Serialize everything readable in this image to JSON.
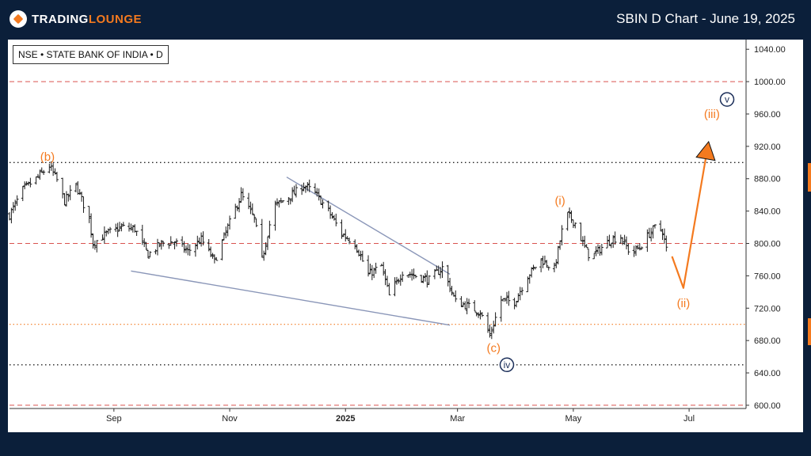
{
  "header": {
    "brand_left": "TRADING",
    "brand_right": "LOUNGE",
    "title": "SBIN D Chart - June 19, 2025"
  },
  "symbol_label": "NSE • STATE BANK OF INDIA • D",
  "colors": {
    "background": "#0b1f3a",
    "accent": "#f47a1f",
    "wedge": "#8a96b8",
    "wave_navy": "#1c2f5a",
    "red_dash": "#d9534f"
  },
  "chart_data": {
    "type": "line",
    "ylim": [
      596,
      1050
    ],
    "y_ticks": [
      600,
      640,
      680,
      720,
      760,
      800,
      840,
      880,
      920,
      960,
      1000,
      1040
    ],
    "y_tick_labels": [
      "600.00",
      "640.00",
      "680.00",
      "720.00",
      "760.00",
      "800.00",
      "840.00",
      "880.00",
      "920.00",
      "960.00",
      "1000.00",
      "1040.00"
    ],
    "x_ticks": [
      {
        "label": "Sep",
        "bold": false,
        "date": "2024-09-01"
      },
      {
        "label": "Nov",
        "bold": false,
        "date": "2024-11-01"
      },
      {
        "label": "2025",
        "bold": true,
        "date": "2025-01-01"
      },
      {
        "label": "Mar",
        "bold": false,
        "date": "2025-03-01"
      },
      {
        "label": "May",
        "bold": false,
        "date": "2025-05-01"
      },
      {
        "label": "Jul",
        "bold": false,
        "date": "2025-07-01"
      }
    ],
    "x_range": [
      "2024-07-08",
      "2025-07-31"
    ],
    "price_series": {
      "name": "SBIN",
      "anchors": [
        [
          "2024-07-08",
          835
        ],
        [
          "2024-07-15",
          866
        ],
        [
          "2024-07-22",
          880
        ],
        [
          "2024-07-29",
          896
        ],
        [
          "2024-08-02",
          878
        ],
        [
          "2024-08-06",
          852
        ],
        [
          "2024-08-12",
          872
        ],
        [
          "2024-08-19",
          830
        ],
        [
          "2024-08-21",
          800
        ],
        [
          "2024-08-28",
          812
        ],
        [
          "2024-09-05",
          820
        ],
        [
          "2024-09-12",
          818
        ],
        [
          "2024-09-19",
          786
        ],
        [
          "2024-09-26",
          800
        ],
        [
          "2024-10-03",
          802
        ],
        [
          "2024-10-10",
          790
        ],
        [
          "2024-10-17",
          805
        ],
        [
          "2024-10-24",
          778
        ],
        [
          "2024-10-31",
          820
        ],
        [
          "2024-11-07",
          860
        ],
        [
          "2024-11-14",
          830
        ],
        [
          "2024-11-18",
          780
        ],
        [
          "2024-11-24",
          845
        ],
        [
          "2024-12-05",
          862
        ],
        [
          "2024-12-10",
          872
        ],
        [
          "2024-12-16",
          862
        ],
        [
          "2024-12-23",
          840
        ],
        [
          "2024-12-30",
          812
        ],
        [
          "2025-01-06",
          800
        ],
        [
          "2025-01-13",
          762
        ],
        [
          "2025-01-20",
          772
        ],
        [
          "2025-01-24",
          735
        ],
        [
          "2025-01-31",
          765
        ],
        [
          "2025-02-07",
          760
        ],
        [
          "2025-02-14",
          755
        ],
        [
          "2025-02-21",
          770
        ],
        [
          "2025-02-28",
          728
        ],
        [
          "2025-03-07",
          722
        ],
        [
          "2025-03-13",
          715
        ],
        [
          "2025-03-18",
          686
        ],
        [
          "2025-03-24",
          730
        ],
        [
          "2025-03-31",
          728
        ],
        [
          "2025-04-07",
          760
        ],
        [
          "2025-04-14",
          780
        ],
        [
          "2025-04-21",
          768
        ],
        [
          "2025-04-25",
          815
        ],
        [
          "2025-04-28",
          835
        ],
        [
          "2025-05-02",
          825
        ],
        [
          "2025-05-06",
          800
        ],
        [
          "2025-05-10",
          782
        ],
        [
          "2025-05-16",
          795
        ],
        [
          "2025-05-21",
          805
        ],
        [
          "2025-05-26",
          808
        ],
        [
          "2025-05-31",
          788
        ],
        [
          "2025-06-05",
          795
        ],
        [
          "2025-06-10",
          812
        ],
        [
          "2025-06-14",
          822
        ],
        [
          "2025-06-17",
          815
        ],
        [
          "2025-06-19",
          793
        ]
      ]
    },
    "horizontal_lines": [
      {
        "value": 1000,
        "style": "red-dash"
      },
      {
        "value": 900,
        "style": "black-dot"
      },
      {
        "value": 800,
        "style": "red-dash"
      },
      {
        "value": 700,
        "style": "orange-dot"
      },
      {
        "value": 650,
        "style": "black-dot"
      },
      {
        "value": 600,
        "style": "red-dash"
      }
    ],
    "wedge_lines": [
      {
        "from": [
          "2024-09-10",
          766
        ],
        "to": [
          "2025-02-25",
          699
        ]
      },
      {
        "from": [
          "2024-12-01",
          882
        ],
        "to": [
          "2025-02-25",
          762
        ]
      }
    ],
    "projection": {
      "points": [
        [
          "2025-06-22",
          784
        ],
        [
          "2025-06-28",
          745
        ],
        [
          "2025-07-11",
          922
        ]
      ]
    },
    "wave_labels": [
      {
        "text": "(b)",
        "date": "2024-07-28",
        "value": 907,
        "style": "orange"
      },
      {
        "text": "(i)",
        "date": "2025-04-24",
        "value": 853,
        "style": "orange"
      },
      {
        "text": "(ii)",
        "date": "2025-06-28",
        "value": 726,
        "style": "orange"
      },
      {
        "text": "(iii)",
        "date": "2025-07-13",
        "value": 960,
        "style": "orange"
      },
      {
        "text": "(c)",
        "date": "2025-03-20",
        "value": 671,
        "style": "orange"
      },
      {
        "text": "iv",
        "date": "2025-03-27",
        "value": 650,
        "style": "navy-circle"
      },
      {
        "text": "v",
        "date": "2025-07-21",
        "value": 978,
        "style": "navy-circle"
      }
    ]
  }
}
